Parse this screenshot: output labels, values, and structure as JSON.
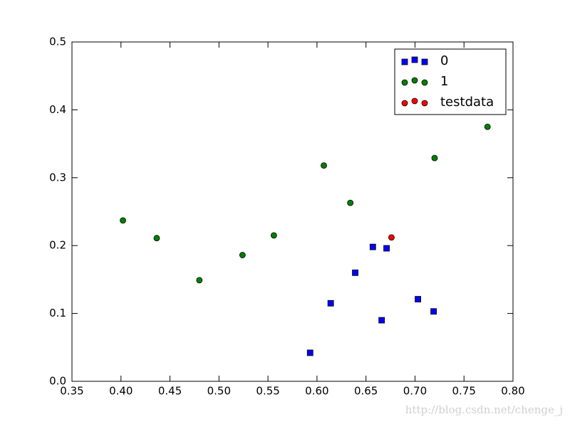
{
  "chart_data": {
    "type": "scatter",
    "series": [
      {
        "name": "0",
        "color": "#0000ff",
        "marker": "square",
        "x": [
          0.593,
          0.614,
          0.639,
          0.657,
          0.671,
          0.666,
          0.703,
          0.719
        ],
        "values": [
          0.042,
          0.115,
          0.16,
          0.198,
          0.196,
          0.09,
          0.121,
          0.103
        ]
      },
      {
        "name": "1",
        "color": "#008000",
        "marker": "circle",
        "x": [
          0.402,
          0.4365,
          0.48,
          0.524,
          0.556,
          0.607,
          0.634,
          0.72,
          0.774
        ],
        "values": [
          0.237,
          0.211,
          0.149,
          0.186,
          0.215,
          0.318,
          0.263,
          0.329,
          0.375
        ]
      },
      {
        "name": "testdata",
        "color": "#ff0000",
        "marker": "circle",
        "x": [
          0.676
        ],
        "values": [
          0.212
        ]
      }
    ],
    "xlim": [
      0.35,
      0.8
    ],
    "xticks": [
      0.35,
      {
        "value": 0.4,
        "label": "0.40"
      },
      0.45,
      {
        "value": 0.5,
        "label": "0.50"
      },
      0.55,
      {
        "value": 0.6,
        "label": "0.60"
      },
      0.65,
      {
        "value": 0.7,
        "label": "0.70"
      },
      0.75,
      {
        "value": 0.8,
        "label": "0.80"
      }
    ],
    "ylim": [
      0,
      0.5
    ],
    "yticks": [
      {
        "value": 0,
        "label": "0.0"
      },
      0.1,
      0.2,
      0.3,
      0.4,
      0.5
    ],
    "legend": "upper right",
    "watermark": "http://blog.csdn.net/chenge_j"
  }
}
